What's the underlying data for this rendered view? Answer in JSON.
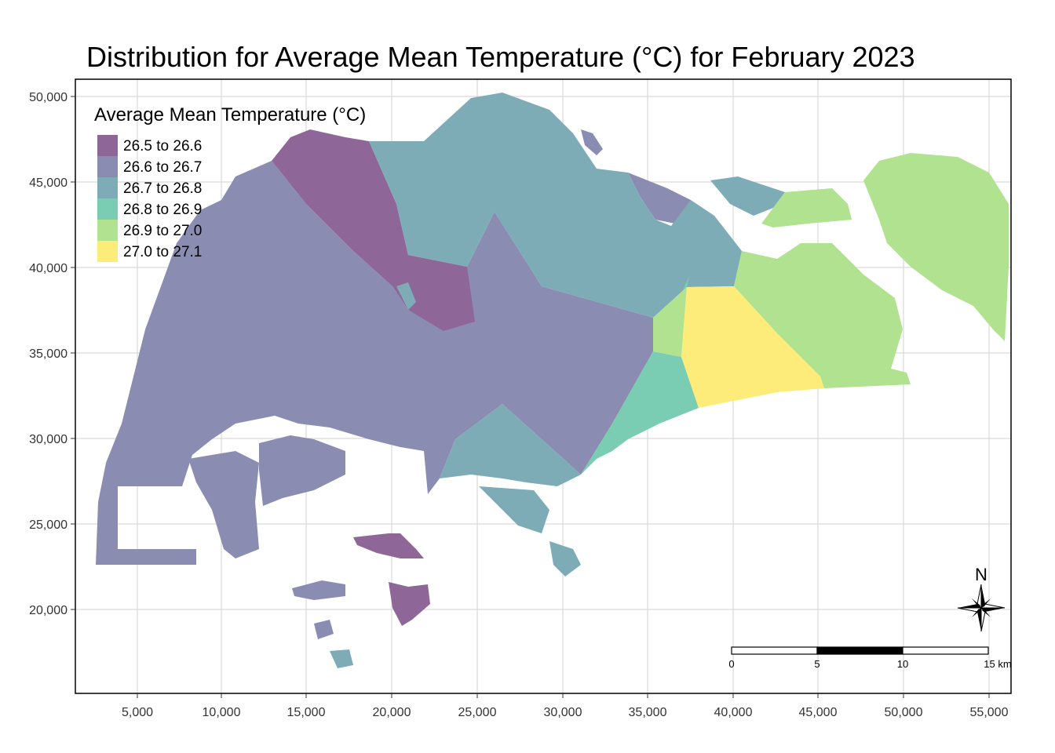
{
  "title": "Distribution for Average Mean Temperature (°C) for February 2023",
  "axes": {
    "x_ticks": [
      "5,000",
      "10,000",
      "15,000",
      "20,000",
      "25,000",
      "30,000",
      "35,000",
      "40,000",
      "45,000",
      "50,000",
      "55,000"
    ],
    "y_ticks": [
      "50,000",
      "45,000",
      "40,000",
      "35,000",
      "30,000",
      "25,000",
      "20,000"
    ],
    "x_range": [
      2200,
      56000
    ],
    "y_range": [
      15300,
      51000
    ],
    "grid": true
  },
  "legend": {
    "title": "Average Mean Temperature (°C)",
    "placement": "top-left",
    "classes": [
      {
        "label": "26.5 to 26.6",
        "color": "#8e6698"
      },
      {
        "label": "26.6 to 26.7",
        "color": "#8b8cb2"
      },
      {
        "label": "26.7 to 26.8",
        "color": "#7dacb7"
      },
      {
        "label": "26.8 to 26.9",
        "color": "#7acdb3"
      },
      {
        "label": "26.9 to 27.0",
        "color": "#b0e290"
      },
      {
        "label": "27.0 to 27.1",
        "color": "#fdec7a"
      }
    ]
  },
  "scale_bar": {
    "labels": [
      "0",
      "5",
      "10",
      "15 km"
    ]
  },
  "north_arrow": {
    "label": "N"
  },
  "colors": {
    "c1": "#8e6698",
    "c2": "#8b8cb2",
    "c3": "#7dacb7",
    "c4": "#7acdb3",
    "c5": "#b0e290",
    "c6": "#fdec7a",
    "grid": "#d9d9d9",
    "frame": "#000000"
  }
}
